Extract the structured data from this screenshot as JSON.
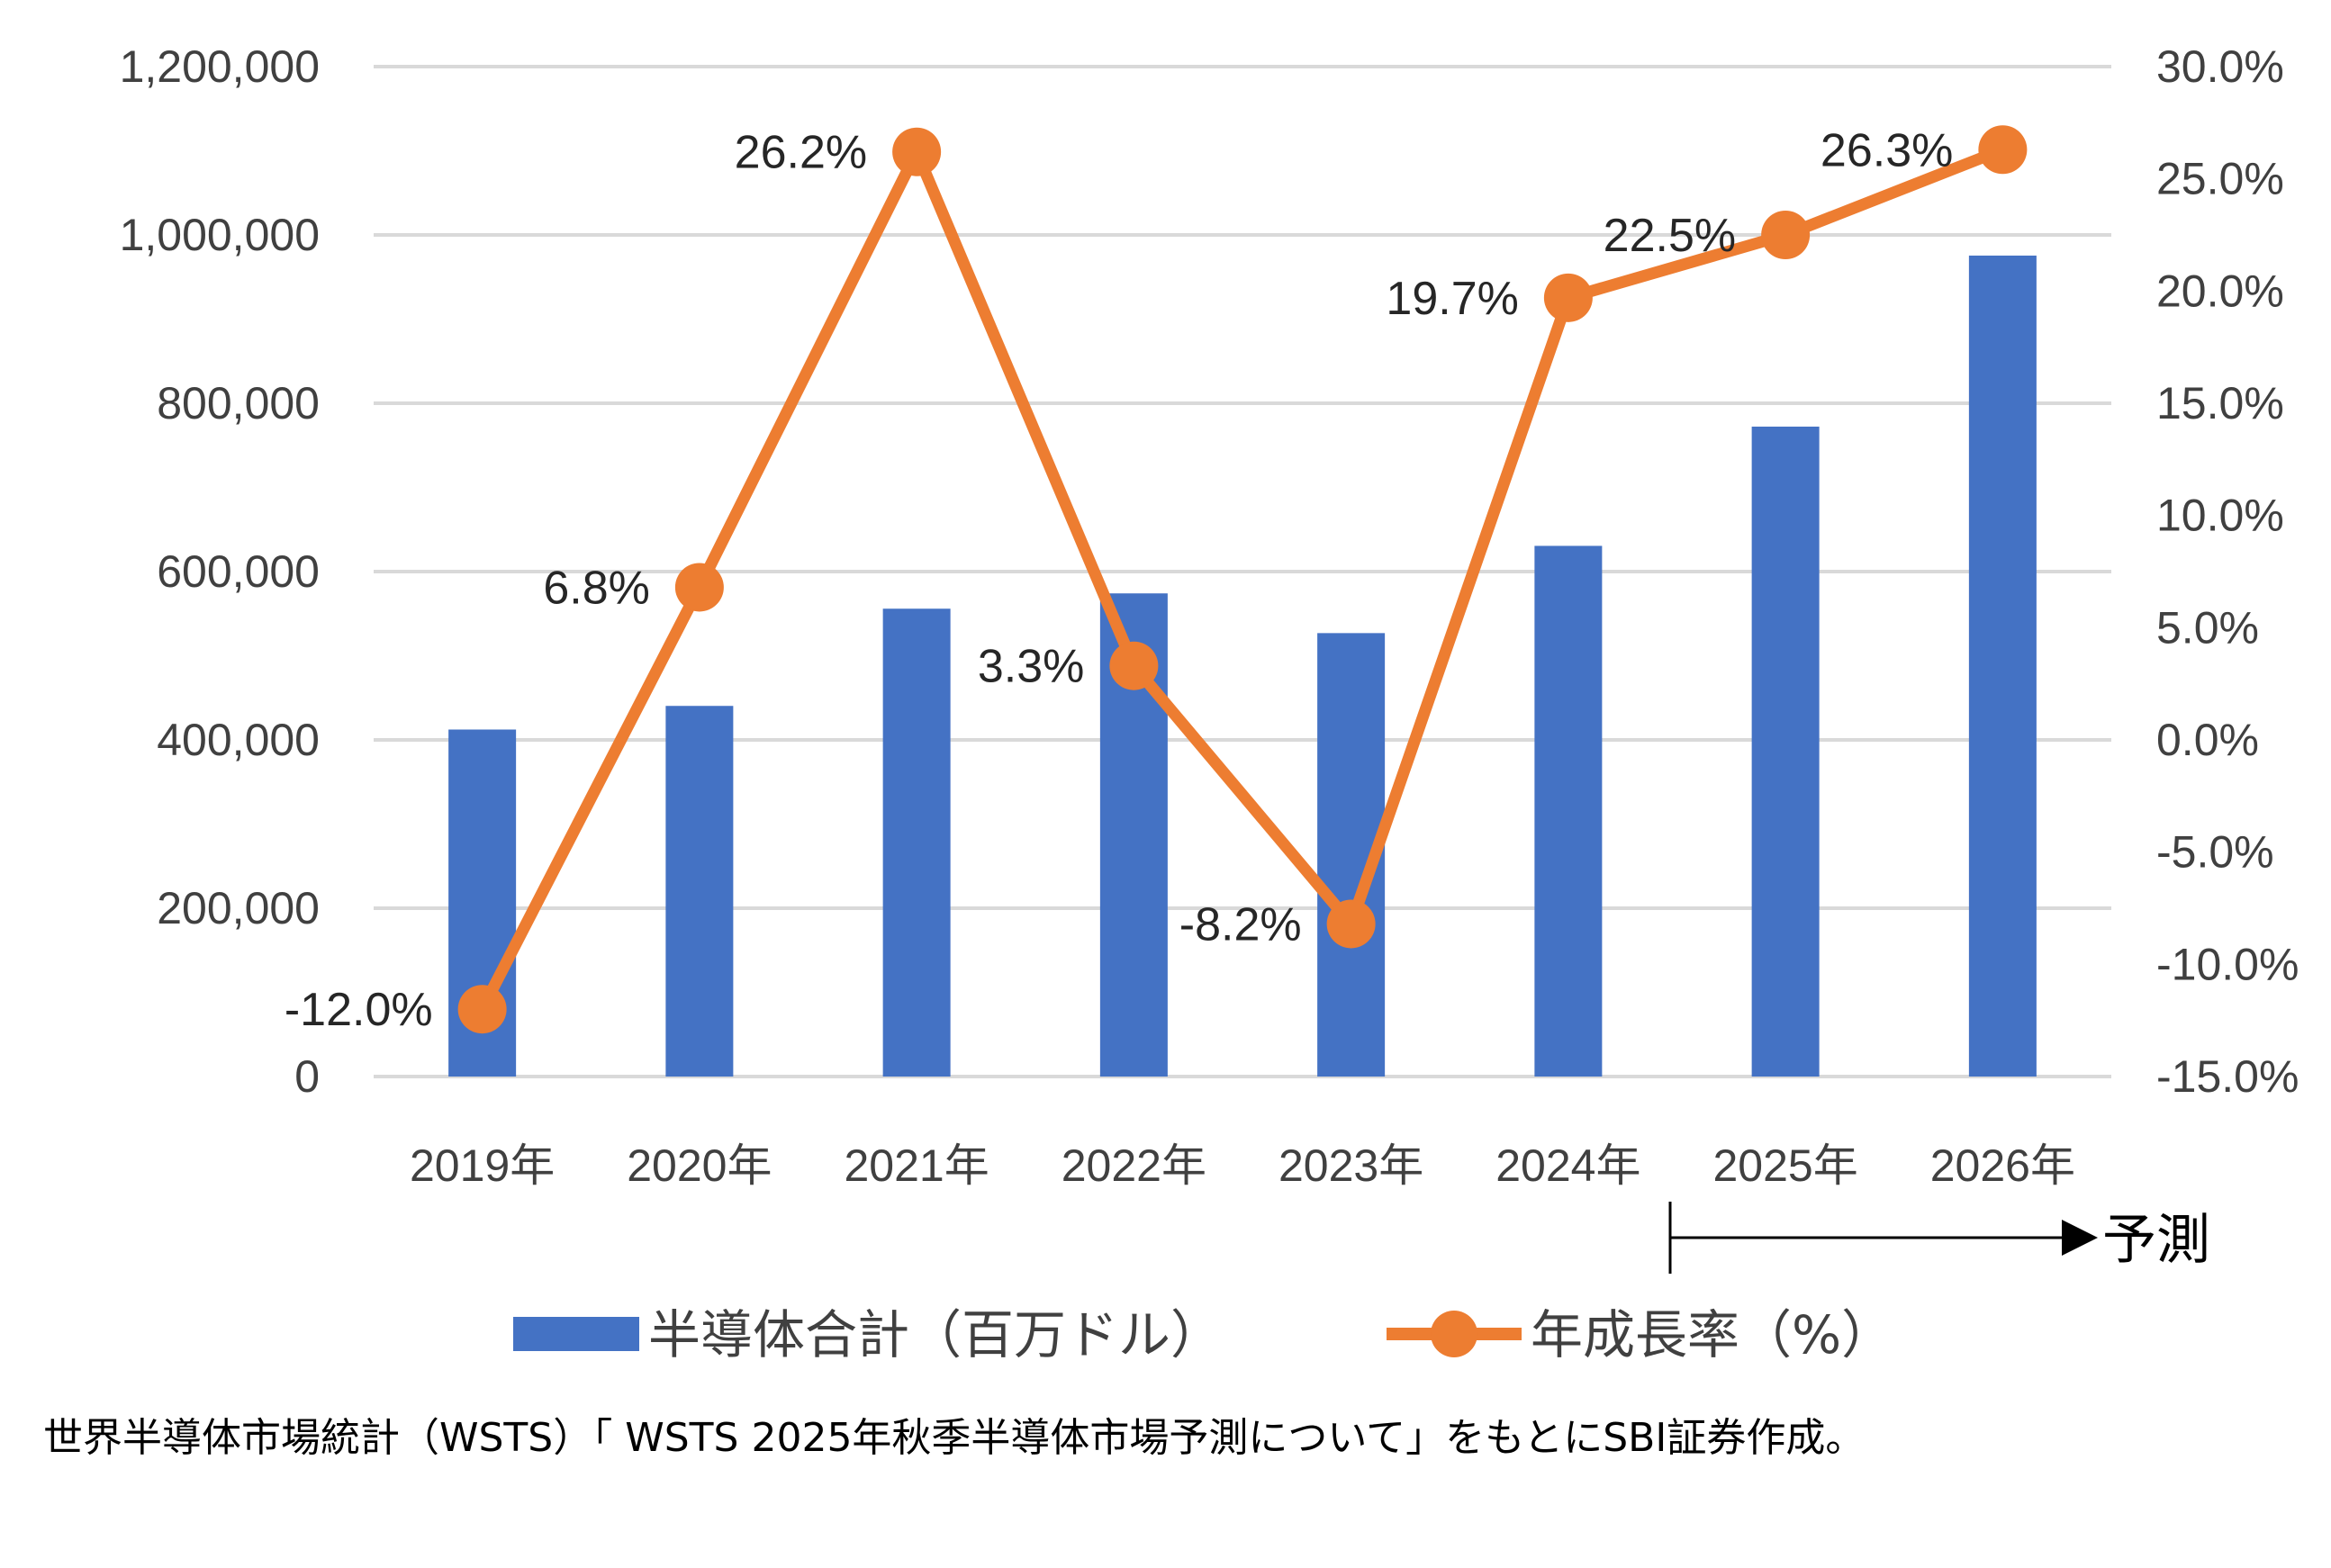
{
  "chart_data": {
    "type": "bar+line",
    "categories": [
      "2019年",
      "2020年",
      "2021年",
      "2022年",
      "2023年",
      "2024年",
      "2025年",
      "2026年"
    ],
    "series": [
      {
        "name": "半導体合計（百万ドル）",
        "type": "bar",
        "axis": "left",
        "color": "#4472C4",
        "values": [
          412307,
          440389,
          555893,
          574084,
          526885,
          630549,
          772243,
          975460
        ]
      },
      {
        "name": "年成長率（%）",
        "type": "line",
        "axis": "right",
        "color": "#ED7D31",
        "values": [
          -12.0,
          6.8,
          26.2,
          3.3,
          -8.2,
          19.7,
          22.5,
          26.3
        ],
        "labels": [
          "-12.0%",
          "6.8%",
          "26.2%",
          "3.3%",
          "-8.2%",
          "19.7%",
          "22.5%",
          "26.3%"
        ]
      }
    ],
    "y_left": {
      "min": 0,
      "max": 1200000,
      "ticks": [
        0,
        200000,
        400000,
        600000,
        800000,
        1000000,
        1200000
      ],
      "tick_labels": [
        "0",
        "200,000",
        "400,000",
        "600,000",
        "800,000",
        "1,000,000",
        "1,200,000"
      ]
    },
    "y_right": {
      "min": -15,
      "max": 30,
      "ticks": [
        -15,
        -10,
        -5,
        0,
        5,
        10,
        15,
        20,
        25,
        30
      ],
      "tick_labels": [
        "-15.0%",
        "-10.0%",
        "-5.0%",
        "0.0%",
        "5.0%",
        "10.0%",
        "15.0%",
        "20.0%",
        "25.0%",
        "30.0%"
      ]
    },
    "grid": true,
    "forecast_label": "予測",
    "forecast_from_index": 6,
    "legend_position": "bottom"
  },
  "source_note": "世界半導体市場統計（WSTS）「 WSTS 2025年秋季半導体市場予測について」をもとにSBI証券作成。"
}
